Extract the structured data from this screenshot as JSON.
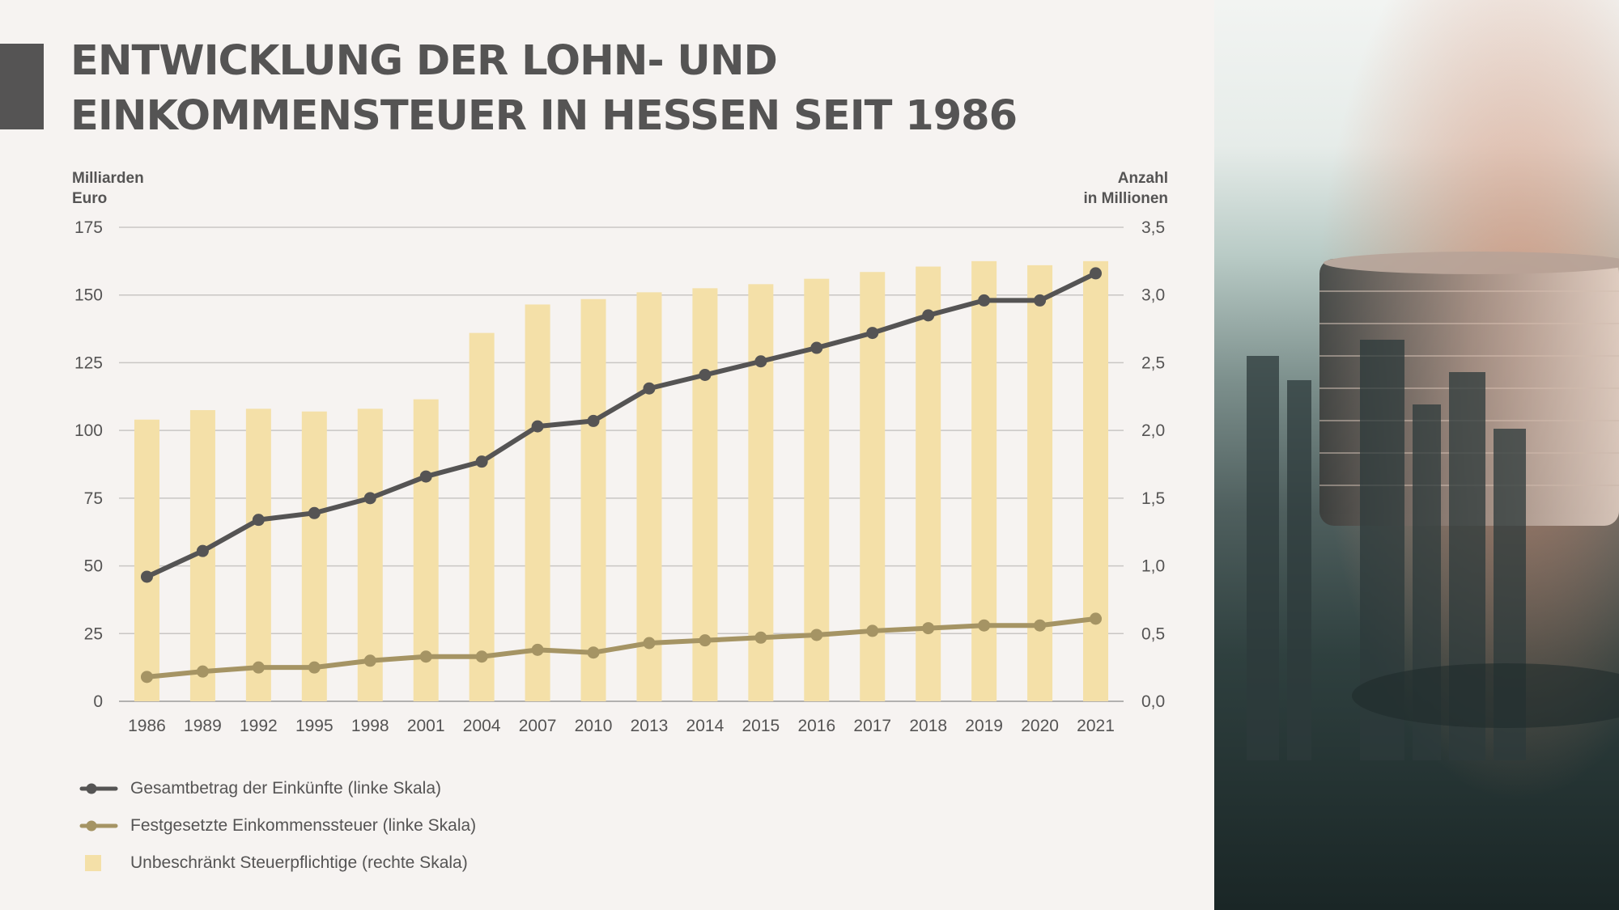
{
  "title_lines": [
    "ENTWICKLUNG DER LOHN- UND",
    "EINKOMMENSTEUER IN HESSEN SEIT 1986"
  ],
  "chart_data": {
    "type": "bar+line",
    "y_left": {
      "label_lines": [
        "Milliarden",
        "Euro"
      ],
      "min": 0,
      "max": 175,
      "ticks": [
        "0",
        "25",
        "50",
        "75",
        "100",
        "125",
        "150",
        "175"
      ]
    },
    "y_right": {
      "label_lines": [
        "Anzahl",
        "in Millionen"
      ],
      "min": 0,
      "max": 3.5,
      "ticks": [
        "0,0",
        "0,5",
        "1,0",
        "1,5",
        "2,0",
        "2,5",
        "3,0",
        "3,5"
      ]
    },
    "categories": [
      "1986",
      "1989",
      "1992",
      "1995",
      "1998",
      "2001",
      "2004",
      "2007",
      "2010",
      "2013",
      "2014",
      "2015",
      "2016",
      "2017",
      "2018",
      "2019",
      "2020",
      "2021"
    ],
    "grid": true,
    "series": [
      {
        "name": "Gesamtbetrag der Einkünfte (linke Skala)",
        "type": "line",
        "axis": "left",
        "color": "#555454",
        "values": [
          46,
          55.5,
          67,
          69.5,
          75,
          83,
          88.5,
          101.5,
          103.5,
          115.5,
          120.5,
          125.5,
          130.5,
          136,
          142.5,
          148,
          148,
          158
        ]
      },
      {
        "name": "Festgesetzte Einkommenssteuer (linke Skala)",
        "type": "line",
        "axis": "left",
        "color": "#a59464",
        "values": [
          9,
          11,
          12.5,
          12.5,
          15,
          16.5,
          16.5,
          19,
          18,
          21.5,
          22.5,
          23.5,
          24.5,
          26,
          27,
          28,
          28,
          30.5
        ]
      },
      {
        "name": "Unbeschränkt Steuerpflichtige (rechte Skala)",
        "type": "bar",
        "axis": "right",
        "color": "#f4e0a8",
        "values": [
          2.08,
          2.15,
          2.16,
          2.14,
          2.16,
          2.23,
          2.72,
          2.93,
          2.97,
          3.02,
          3.05,
          3.08,
          3.12,
          3.17,
          3.21,
          3.25,
          3.22,
          3.25
        ]
      }
    ]
  },
  "legend_items": [
    {
      "label": "Gesamtbetrag der Einkünfte (linke Skala)",
      "color": "#555454"
    },
    {
      "label": "Festgesetzte Einkommenssteuer (linke Skala)",
      "color": "#a59464"
    },
    {
      "label": "Unbeschränkt Steuerpflichtige (rechte Skala)",
      "color": "#f4e0a8"
    }
  ],
  "photo": {
    "description_icon": "coins-city-photo"
  }
}
